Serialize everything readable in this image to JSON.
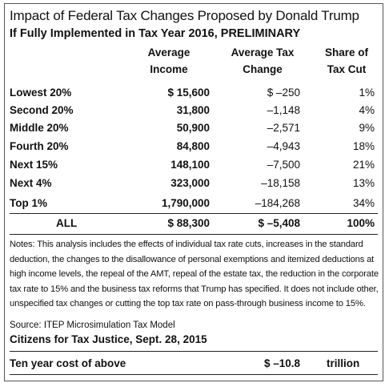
{
  "title": "Impact of Federal Tax Changes Proposed by Donald Trump",
  "subtitle": "If Fully Implemented in Tax Year 2016, PRELIMINARY",
  "columns": {
    "income": [
      "Average",
      "Income"
    ],
    "change": [
      "Average Tax",
      "Change"
    ],
    "share": [
      "Share of",
      "Tax Cut"
    ]
  },
  "rows": [
    {
      "label": "Lowest 20%",
      "income": "$ 15,600",
      "change": "$ –250",
      "share": "1%"
    },
    {
      "label": "Second 20%",
      "income": "31,800",
      "change": "–1,148",
      "share": "4%"
    },
    {
      "label": "Middle 20%",
      "income": "50,900",
      "change": "–2,571",
      "share": "9%"
    },
    {
      "label": "Fourth 20%",
      "income": "84,800",
      "change": "–4,943",
      "share": "18%"
    },
    {
      "label": "Next 15%",
      "income": "148,100",
      "change": "–7,500",
      "share": "21%"
    },
    {
      "label": "Next 4%",
      "income": "323,000",
      "change": "–18,158",
      "share": "13%"
    },
    {
      "label": "Top 1%",
      "income": "1,790,000",
      "change": "–184,268",
      "share": "34%"
    }
  ],
  "total": {
    "label": "ALL",
    "income": "$ 88,300",
    "change": "$ –5,408",
    "share": "100%"
  },
  "notes": "Notes: This analysis includes the effects of individual tax rate cuts, increases in the standard deduction, the changes to the disallowance of personal exemptions and itemized deductions at high income levels, the repeal of the AMT, repeal of the estate tax, the reduction in the corporate tax rate to 15% and the business tax reforms that Trump has specified. It does not include other, unspecified tax changes or cutting the top tax rate on pass-through business income to 15%.",
  "source": "Source: ITEP Microsimulation Tax Model",
  "org": "Citizens for Tax Justice, Sept. 28, 2015",
  "ten_year": {
    "label": "Ten year cost of above",
    "value": "$ –10.8",
    "unit": "trillion"
  }
}
